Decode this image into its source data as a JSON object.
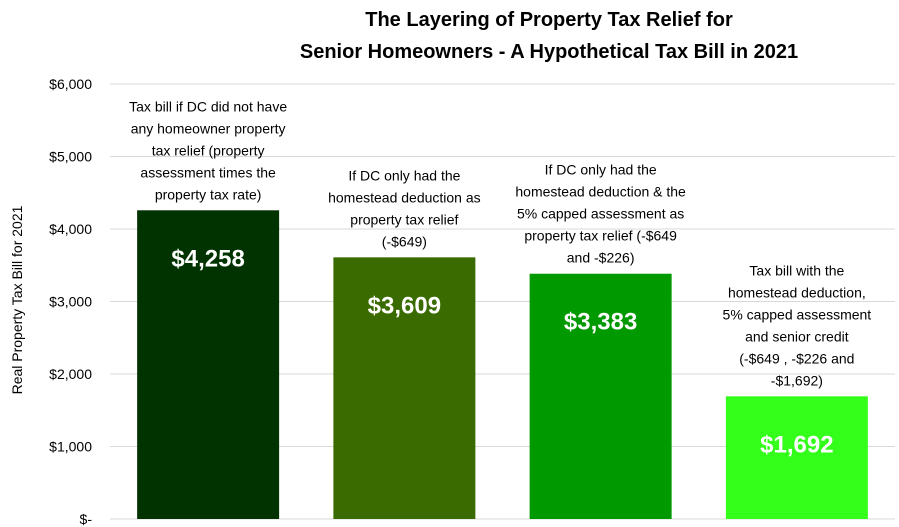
{
  "chart_data": {
    "type": "bar",
    "title": [
      "The Layering of Property Tax Relief for",
      "Senior Homeowners - A Hypothetical Tax Bill in 2021"
    ],
    "ylabel": "Real Property Tax Bill for 2021",
    "ylim": [
      0,
      6000
    ],
    "yticks": [
      0,
      1000,
      2000,
      3000,
      4000,
      5000,
      6000
    ],
    "ytick_labels": [
      "$-",
      "$1,000",
      "$2,000",
      "$3,000",
      "$4,000",
      "$5,000",
      "$6,000"
    ],
    "grid": true,
    "bars": [
      {
        "value": 4258,
        "value_label": "$4,258",
        "color": "#003300",
        "annotation": [
          "Tax bill if DC did not have",
          "any homeowner property",
          "tax relief (property",
          "assessment times the",
          "property tax rate)"
        ]
      },
      {
        "value": 3609,
        "value_label": "$3,609",
        "color": "#3a6b00",
        "annotation": [
          "If DC only had the",
          "homestead deduction as",
          "property tax relief",
          "(-$649)"
        ]
      },
      {
        "value": 3383,
        "value_label": "$3,383",
        "color": "#009900",
        "annotation": [
          "If DC only had the",
          "homestead deduction & the",
          "5% capped assessment as",
          "property tax relief (-$649",
          "and -$226)"
        ]
      },
      {
        "value": 1692,
        "value_label": "$1,692",
        "color": "#33ff1a",
        "annotation": [
          "Tax bill with the",
          "homestead deduction,",
          "5% capped assessment",
          "and senior credit",
          "(-$649 , -$226 and",
          "-$1,692)"
        ]
      }
    ]
  }
}
